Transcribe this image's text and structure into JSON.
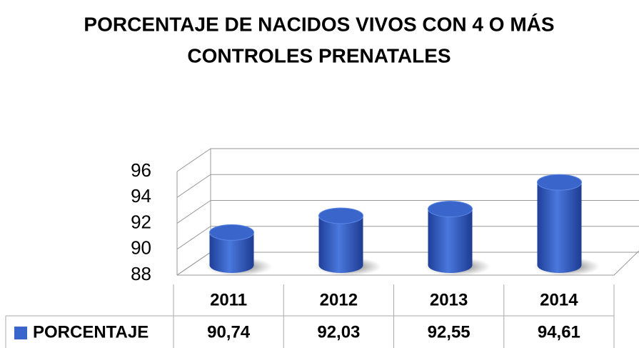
{
  "chart_data": {
    "type": "bar",
    "title": [
      "PORCENTAJE DE NACIDOS VIVOS CON 4 O MÁS",
      "CONTROLES PRENATALES"
    ],
    "categories": [
      "2011",
      "2012",
      "2013",
      "2014"
    ],
    "series": [
      {
        "name": "PORCENTAJE",
        "color": "#3a66cc",
        "values": [
          90.74,
          92.03,
          92.55,
          94.61
        ],
        "value_labels": [
          "90,74",
          "92,03",
          "92,55",
          "94,61"
        ]
      }
    ],
    "ylim": [
      88,
      96
    ],
    "yticks": [
      88,
      90,
      92,
      94,
      96
    ],
    "grid": true,
    "legend": "bottom"
  }
}
